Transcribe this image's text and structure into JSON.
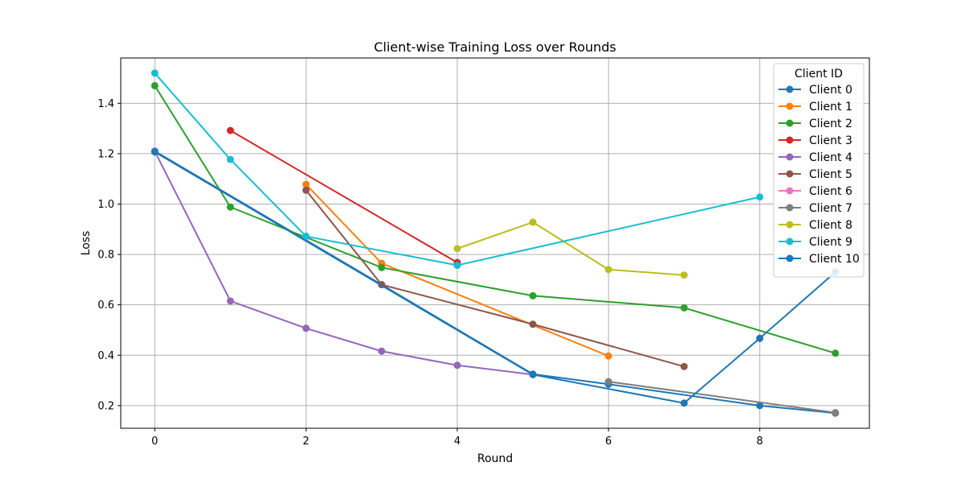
{
  "chart_data": {
    "type": "line",
    "title": "Client-wise Training Loss over Rounds",
    "xlabel": "Round",
    "ylabel": "Loss",
    "xlim": [
      -0.45,
      9.45
    ],
    "ylim": [
      0.11,
      1.58
    ],
    "xticks": [
      0,
      2,
      4,
      6,
      8
    ],
    "yticks": [
      0.2,
      0.4,
      0.6,
      0.8,
      1.0,
      1.2,
      1.4
    ],
    "grid": true,
    "legend": {
      "title": "Client ID",
      "placement": "top-right"
    },
    "series": [
      {
        "name": "Client 0",
        "color": "#1f77b4",
        "points": [
          [
            0,
            1.21
          ],
          [
            3,
            0.68
          ],
          [
            5,
            0.325
          ],
          [
            6,
            0.285
          ],
          [
            8,
            0.2
          ],
          [
            9,
            0.17
          ]
        ]
      },
      {
        "name": "Client 1",
        "color": "#ff7f0e",
        "points": [
          [
            2,
            1.078
          ],
          [
            3,
            0.765
          ],
          [
            6,
            0.397
          ]
        ]
      },
      {
        "name": "Client 2",
        "color": "#2ca02c",
        "points": [
          [
            0,
            1.47
          ],
          [
            1,
            0.988
          ],
          [
            3,
            0.748
          ],
          [
            5,
            0.636
          ],
          [
            7,
            0.588
          ],
          [
            9,
            0.408
          ]
        ]
      },
      {
        "name": "Client 3",
        "color": "#d62728",
        "points": [
          [
            1,
            1.292
          ],
          [
            4,
            0.768
          ]
        ]
      },
      {
        "name": "Client 4",
        "color": "#9467bd",
        "points": [
          [
            0,
            1.21
          ],
          [
            1,
            0.615
          ],
          [
            2,
            0.507
          ],
          [
            3,
            0.416
          ],
          [
            4,
            0.36
          ],
          [
            5,
            0.323
          ]
        ]
      },
      {
        "name": "Client 5",
        "color": "#8c564b",
        "points": [
          [
            2,
            1.055
          ],
          [
            3,
            0.68
          ],
          [
            5,
            0.523
          ],
          [
            7,
            0.355
          ]
        ]
      },
      {
        "name": "Client 6",
        "color": "#e377c2",
        "points": [
          [
            8,
            0.467
          ]
        ]
      },
      {
        "name": "Client 7",
        "color": "#7f7f7f",
        "points": [
          [
            6,
            0.295
          ],
          [
            9,
            0.172
          ]
        ]
      },
      {
        "name": "Client 8",
        "color": "#bcbd22",
        "points": [
          [
            4,
            0.823
          ],
          [
            5,
            0.928
          ],
          [
            6,
            0.74
          ],
          [
            7,
            0.718
          ]
        ]
      },
      {
        "name": "Client 9",
        "color": "#17becf",
        "points": [
          [
            0,
            1.52
          ],
          [
            1,
            1.177
          ],
          [
            2,
            0.872
          ],
          [
            4,
            0.757
          ],
          [
            8,
            1.028
          ]
        ]
      },
      {
        "name": "Client 10",
        "color": "#1f77b4",
        "points": [
          [
            0,
            1.207
          ],
          [
            5,
            0.323
          ],
          [
            7,
            0.21
          ],
          [
            8,
            0.467
          ],
          [
            9,
            0.73
          ]
        ]
      }
    ]
  },
  "colors": {
    "grid": "#b0b0b0",
    "axes": "#000000",
    "legend_border": "#cccccc"
  }
}
